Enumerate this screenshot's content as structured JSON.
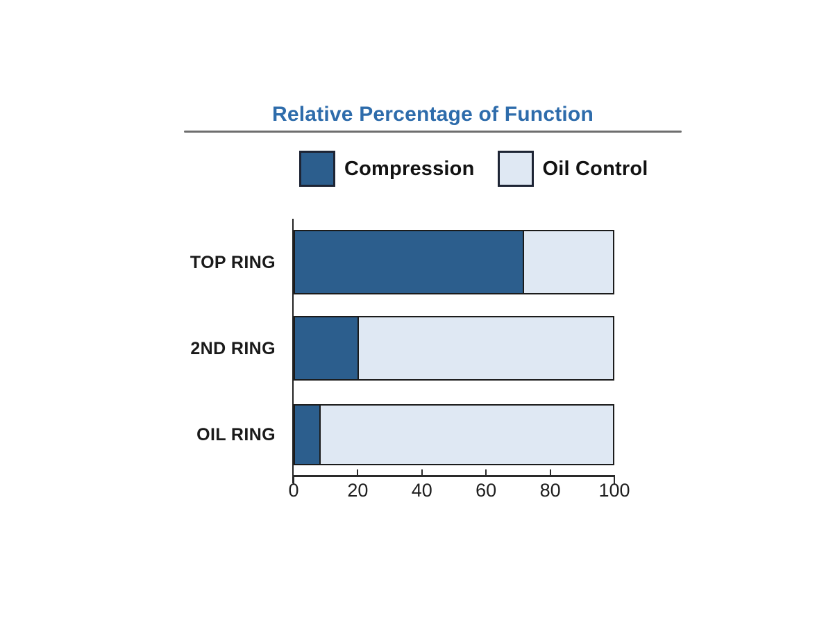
{
  "title": "Relative Percentage of Function",
  "colors": {
    "title_blue": "#2e6cab",
    "compression_blue": "#2c5e8d",
    "oil_control_blue": "#dfe8f3",
    "axis": "#2a2a2a",
    "label_text": "#1a1a1a"
  },
  "legend": {
    "position": "top",
    "items": [
      {
        "label": "Compression",
        "color": "#2c5e8d"
      },
      {
        "label": "Oil Control",
        "color": "#dfe8f3"
      }
    ]
  },
  "chart_data": {
    "type": "bar",
    "orientation": "horizontal",
    "stacked": true,
    "title": "Relative Percentage of Function",
    "categories": [
      "TOP RING",
      "2ND RING",
      "OIL RING"
    ],
    "series": [
      {
        "name": "Compression",
        "color": "#2c5e8d",
        "values": [
          72,
          20,
          8
        ]
      },
      {
        "name": "Oil Control",
        "color": "#dfe8f3",
        "values": [
          28,
          80,
          92
        ]
      }
    ],
    "xlabel": "",
    "ylabel": "",
    "xlim": [
      0,
      100
    ],
    "x_ticks": [
      0,
      20,
      40,
      60,
      80,
      100
    ],
    "grid": false,
    "legend_position": "top"
  }
}
